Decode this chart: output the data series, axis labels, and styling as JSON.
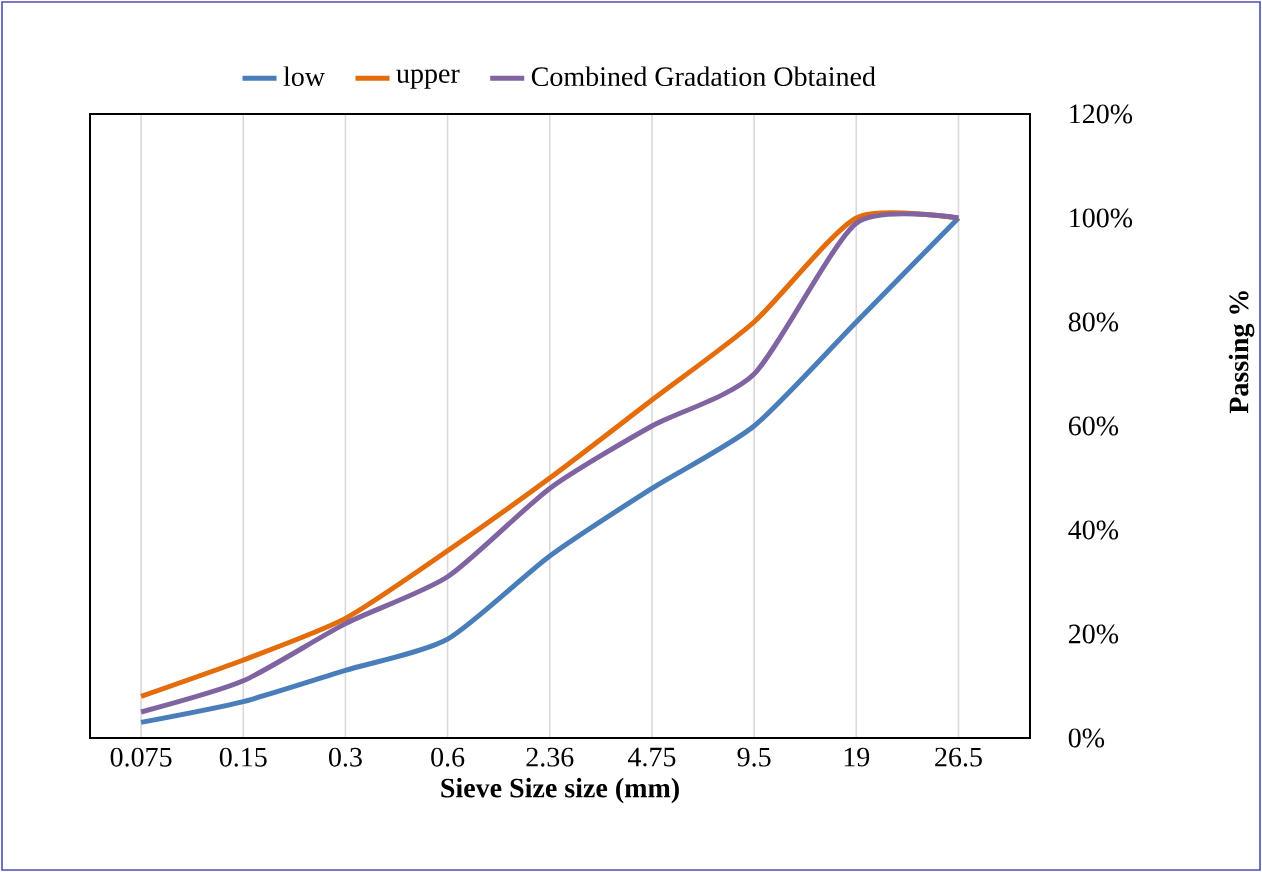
{
  "chart_data": {
    "type": "line",
    "xlabel": "Sieve Size size (mm)",
    "ylabel": "Passing  %",
    "categories": [
      "0.075",
      "0.15",
      "0.3",
      "0.6",
      "2.36",
      "4.75",
      "9.5",
      "19",
      "26.5"
    ],
    "series": [
      {
        "name": "low",
        "color": "#4a7ebb",
        "values": [
          3,
          7,
          13,
          19,
          35,
          48,
          60,
          80,
          100
        ]
      },
      {
        "name": "upper",
        "color": "#e46c0a",
        "values": [
          8,
          15,
          23,
          36,
          50,
          65,
          80,
          100,
          100
        ]
      },
      {
        "name": "Combined  Gradation  Obtained",
        "color": "#8064a2",
        "values": [
          5,
          11,
          22,
          31,
          48,
          60,
          70,
          99,
          100
        ]
      }
    ],
    "ylim": [
      0,
      120
    ],
    "yticks": [
      {
        "value": 0,
        "label": "0%"
      },
      {
        "value": 20,
        "label": "20%"
      },
      {
        "value": 40,
        "label": "40%"
      },
      {
        "value": 60,
        "label": "60%"
      },
      {
        "value": 80,
        "label": "80%"
      },
      {
        "value": 100,
        "label": "100%"
      },
      {
        "value": 120,
        "label": "120%"
      }
    ],
    "grid": "x",
    "legend": "top",
    "marker": "none",
    "line_style": "solid"
  }
}
